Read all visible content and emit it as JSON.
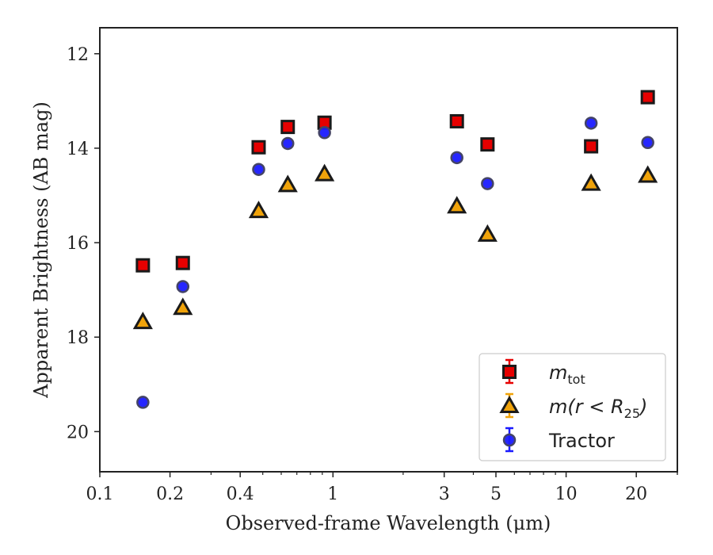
{
  "chart_data": {
    "type": "scatter",
    "xlabel": "Observed-frame Wavelength (μm)",
    "ylabel": "Apparent Brightness (AB mag)",
    "xscale": "log",
    "xlim": [
      0.1,
      30
    ],
    "ylim": [
      20.85,
      11.45
    ],
    "y_inverted": true,
    "x_ticks": [
      {
        "value": 0.1,
        "label": "0.1"
      },
      {
        "value": 0.2,
        "label": "0.2"
      },
      {
        "value": 0.4,
        "label": "0.4"
      },
      {
        "value": 1,
        "label": "1"
      },
      {
        "value": 3,
        "label": "3"
      },
      {
        "value": 5,
        "label": "5"
      },
      {
        "value": 10,
        "label": "10"
      },
      {
        "value": 20,
        "label": "20"
      }
    ],
    "y_ticks": [
      12,
      14,
      16,
      18,
      20
    ],
    "grid": false,
    "legend_position": "lower-right",
    "series": [
      {
        "name": "m_tot",
        "marker": "square",
        "color": "#e60000",
        "x": [
          0.153,
          0.227,
          0.48,
          0.64,
          0.92,
          3.4,
          4.6,
          12.8,
          22.4
        ],
        "y": [
          16.48,
          16.43,
          13.98,
          13.55,
          13.46,
          13.43,
          13.92,
          13.96,
          12.92
        ]
      },
      {
        "name": "m(r < R25)",
        "marker": "triangle",
        "color": "#f0a30a",
        "x": [
          0.153,
          0.227,
          0.48,
          0.64,
          0.92,
          3.4,
          4.6,
          12.8,
          22.4
        ],
        "y": [
          17.68,
          17.38,
          15.33,
          14.78,
          14.55,
          15.23,
          15.83,
          14.75,
          14.58
        ]
      },
      {
        "name": "Tractor",
        "marker": "circle",
        "color": "#1a1aff",
        "x": [
          0.153,
          0.227,
          0.48,
          0.64,
          0.92,
          3.4,
          4.6,
          12.8,
          22.4
        ],
        "y": [
          19.38,
          16.93,
          14.45,
          13.9,
          13.67,
          14.2,
          14.75,
          13.47,
          13.88
        ]
      }
    ],
    "legend": [
      {
        "text": "m",
        "sub": "tot",
        "marker": "square"
      },
      {
        "text": "m(r < R",
        "sub": "25",
        "suffix": ")",
        "marker": "triangle"
      },
      {
        "text": "Tractor",
        "sub": "",
        "marker": "circle"
      }
    ]
  }
}
